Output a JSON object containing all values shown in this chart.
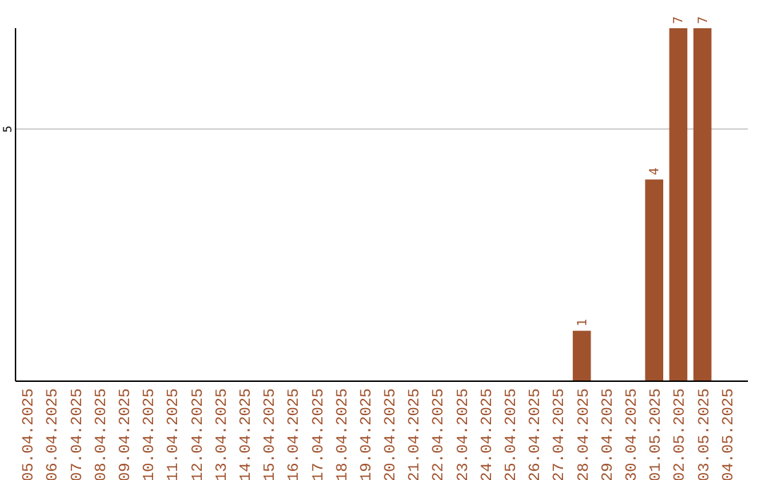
{
  "chart_data": {
    "type": "bar",
    "categories": [
      "05.04.2025",
      "06.04.2025",
      "07.04.2025",
      "08.04.2025",
      "09.04.2025",
      "10.04.2025",
      "11.04.2025",
      "12.04.2025",
      "13.04.2025",
      "14.04.2025",
      "15.04.2025",
      "16.04.2025",
      "17.04.2025",
      "18.04.2025",
      "19.04.2025",
      "20.04.2025",
      "21.04.2025",
      "22.04.2025",
      "23.04.2025",
      "24.04.2025",
      "25.04.2025",
      "26.04.2025",
      "27.04.2025",
      "28.04.2025",
      "29.04.2025",
      "30.04.2025",
      "01.05.2025",
      "02.05.2025",
      "03.05.2025",
      "04.05.2025"
    ],
    "values": [
      null,
      null,
      null,
      null,
      null,
      null,
      null,
      null,
      null,
      null,
      null,
      null,
      null,
      null,
      null,
      null,
      null,
      null,
      null,
      null,
      null,
      null,
      null,
      1,
      null,
      null,
      4,
      7,
      7,
      null
    ],
    "value_labels": [
      null,
      null,
      null,
      null,
      null,
      null,
      null,
      null,
      null,
      null,
      null,
      null,
      null,
      null,
      null,
      null,
      null,
      null,
      null,
      null,
      null,
      null,
      null,
      "1",
      null,
      null,
      "4",
      "7",
      "7",
      null
    ],
    "color": "#a0522d",
    "ylim": [
      0,
      7
    ],
    "yticks": [
      5
    ],
    "grid": "y",
    "legend": false
  }
}
